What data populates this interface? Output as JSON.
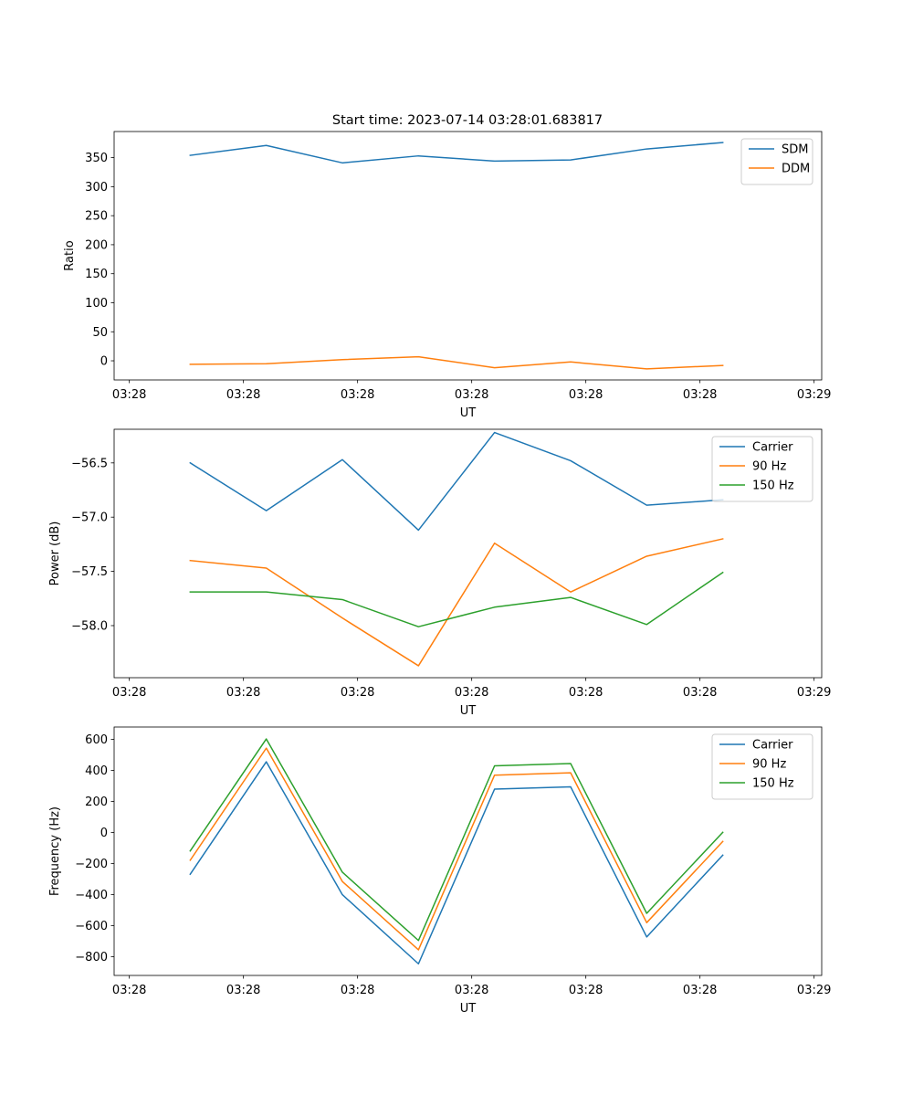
{
  "figure_title": "Start time: 2023-07-14 03:28:01.683817",
  "colors": {
    "series_1": "#1f77b4",
    "series_2": "#ff7f0e",
    "series_3": "#2ca02c",
    "axes": "#000000",
    "legend_border": "#cccccc"
  },
  "chart_data": [
    {
      "type": "line",
      "title": "Start time: 2023-07-14 03:28:01.683817",
      "xlabel": "UT",
      "ylabel": "Ratio",
      "xlim": [
        0,
        9.3
      ],
      "ylim": [
        -33,
        395
      ],
      "x_ticks": [
        0.2,
        1.7,
        3.2,
        4.7,
        6.2,
        7.7,
        9.2
      ],
      "x_tick_labels": [
        "03:28",
        "03:28",
        "03:28",
        "03:28",
        "03:28",
        "03:28",
        "03:29"
      ],
      "y_ticks": [
        0,
        50,
        100,
        150,
        200,
        250,
        300,
        350
      ],
      "y_tick_labels": [
        "0",
        "50",
        "100",
        "150",
        "200",
        "250",
        "300",
        "350"
      ],
      "legend_position": "top-right",
      "x": [
        1,
        2,
        3,
        4,
        5,
        6,
        7,
        8
      ],
      "series": [
        {
          "name": "SDM",
          "color": "#1f77b4",
          "values": [
            354,
            371,
            341,
            353,
            344,
            346,
            365,
            376
          ]
        },
        {
          "name": "DDM",
          "color": "#ff7f0e",
          "values": [
            -6,
            -5,
            2,
            7,
            -12,
            -2,
            -14,
            -8
          ]
        }
      ]
    },
    {
      "type": "line",
      "title": "",
      "xlabel": "UT",
      "ylabel": "Power (dB)",
      "xlim": [
        0,
        9.3
      ],
      "ylim": [
        -58.48,
        -56.19
      ],
      "x_ticks": [
        0.2,
        1.7,
        3.2,
        4.7,
        6.2,
        7.7,
        9.2
      ],
      "x_tick_labels": [
        "03:28",
        "03:28",
        "03:28",
        "03:28",
        "03:28",
        "03:28",
        "03:29"
      ],
      "y_ticks": [
        -58.0,
        -57.5,
        -57.0,
        -56.5
      ],
      "y_tick_labels": [
        "−58.0",
        "−57.5",
        "−57.0",
        "−56.5"
      ],
      "legend_position": "top-right",
      "x": [
        1,
        2,
        3,
        4,
        5,
        6,
        7,
        8
      ],
      "series": [
        {
          "name": "Carrier",
          "color": "#1f77b4",
          "values": [
            -56.5,
            -56.94,
            -56.47,
            -57.12,
            -56.22,
            -56.48,
            -56.89,
            -56.84
          ]
        },
        {
          "name": "90 Hz",
          "color": "#ff7f0e",
          "values": [
            -57.4,
            -57.47,
            -57.93,
            -58.37,
            -57.24,
            -57.69,
            -57.36,
            -57.2
          ]
        },
        {
          "name": "150 Hz",
          "color": "#2ca02c",
          "values": [
            -57.69,
            -57.69,
            -57.76,
            -58.01,
            -57.83,
            -57.74,
            -57.99,
            -57.51
          ]
        }
      ]
    },
    {
      "type": "line",
      "title": "",
      "xlabel": "UT",
      "ylabel": "Frequency (Hz)",
      "xlim": [
        0,
        9.3
      ],
      "ylim": [
        -920,
        680
      ],
      "x_ticks": [
        0.2,
        1.7,
        3.2,
        4.7,
        6.2,
        7.7,
        9.2
      ],
      "x_tick_labels": [
        "03:28",
        "03:28",
        "03:28",
        "03:28",
        "03:28",
        "03:28",
        "03:29"
      ],
      "y_ticks": [
        -800,
        -600,
        -400,
        -200,
        0,
        200,
        400,
        600
      ],
      "y_tick_labels": [
        "−800",
        "−600",
        "−400",
        "−200",
        "0",
        "200",
        "400",
        "600"
      ],
      "legend_position": "top-right",
      "x": [
        1,
        2,
        3,
        4,
        5,
        6,
        7,
        8
      ],
      "series": [
        {
          "name": "Carrier",
          "color": "#1f77b4",
          "values": [
            -268,
            456,
            -400,
            -845,
            280,
            295,
            -672,
            -145
          ]
        },
        {
          "name": "90 Hz",
          "color": "#ff7f0e",
          "values": [
            -178,
            544,
            -315,
            -755,
            370,
            385,
            -580,
            -57
          ]
        },
        {
          "name": "150 Hz",
          "color": "#2ca02c",
          "values": [
            -118,
            603,
            -255,
            -695,
            430,
            445,
            -520,
            2
          ]
        }
      ]
    }
  ]
}
